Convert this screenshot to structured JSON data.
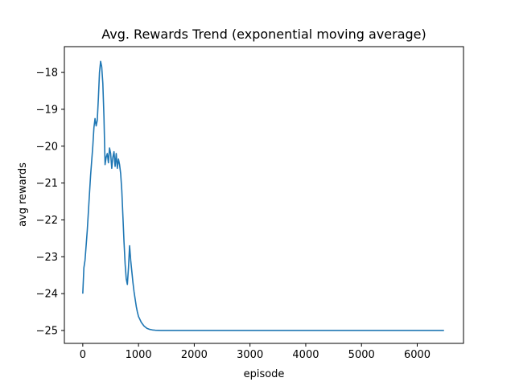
{
  "chart_data": {
    "type": "line",
    "title": "Avg. Rewards Trend (exponential moving average)",
    "xlabel": "episode",
    "ylabel": "avg rewards",
    "xlim": [
      -330,
      6830
    ],
    "ylim": [
      -25.35,
      -17.3
    ],
    "xticks": [
      0,
      1000,
      2000,
      3000,
      4000,
      5000,
      6000
    ],
    "yticks": [
      -25,
      -24,
      -23,
      -22,
      -21,
      -20,
      -19,
      -18
    ],
    "grid": false,
    "legend": "none",
    "series": [
      {
        "color": "#1f77b4",
        "x": [
          0,
          20,
          40,
          60,
          80,
          100,
          120,
          140,
          160,
          180,
          200,
          220,
          240,
          260,
          280,
          300,
          320,
          340,
          360,
          380,
          400,
          420,
          440,
          460,
          480,
          500,
          520,
          540,
          560,
          580,
          600,
          620,
          640,
          660,
          680,
          700,
          720,
          740,
          760,
          780,
          800,
          820,
          840,
          860,
          880,
          900,
          920,
          940,
          960,
          980,
          1000,
          1050,
          1100,
          1150,
          1200,
          1250,
          1300,
          1350,
          1400,
          1500,
          1600,
          1800,
          2000,
          3000,
          4000,
          5000,
          6000,
          6480
        ],
        "y": [
          -24.0,
          -23.3,
          -23.1,
          -22.7,
          -22.3,
          -21.8,
          -21.3,
          -20.8,
          -20.4,
          -20.0,
          -19.5,
          -19.25,
          -19.45,
          -19.3,
          -18.7,
          -18.0,
          -17.7,
          -17.85,
          -18.3,
          -19.2,
          -20.5,
          -20.3,
          -20.2,
          -20.45,
          -20.05,
          -20.2,
          -20.6,
          -20.3,
          -20.15,
          -20.55,
          -20.2,
          -20.6,
          -20.35,
          -20.5,
          -20.75,
          -21.2,
          -21.9,
          -22.6,
          -23.2,
          -23.6,
          -23.75,
          -23.3,
          -22.7,
          -23.1,
          -23.4,
          -23.7,
          -23.95,
          -24.15,
          -24.35,
          -24.5,
          -24.62,
          -24.78,
          -24.88,
          -24.94,
          -24.97,
          -24.985,
          -24.993,
          -24.997,
          -25.0,
          -25.0,
          -25.0,
          -25.0,
          -25.0,
          -25.0,
          -25.0,
          -25.0,
          -25.0,
          -25.0
        ]
      }
    ]
  }
}
